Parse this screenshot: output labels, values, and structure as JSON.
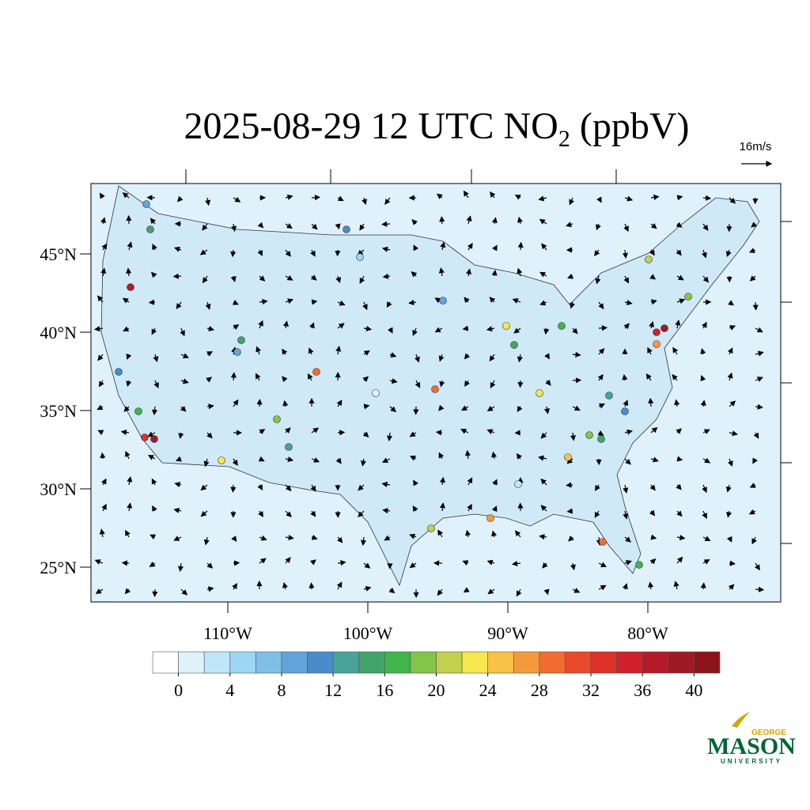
{
  "title": {
    "main": "2025-08-29 12 UTC NO",
    "subscript": "2",
    "unit": " (ppbV)"
  },
  "wind_reference": "16m/s",
  "lat_labels": [
    {
      "value": 45,
      "label": "45°N"
    },
    {
      "value": 40,
      "label": "40°N"
    },
    {
      "value": 35,
      "label": "35°N"
    },
    {
      "value": 30,
      "label": "30°N"
    },
    {
      "value": 25,
      "label": "25°N"
    }
  ],
  "lon_labels": [
    {
      "value": -110,
      "label": "110°W"
    },
    {
      "value": -100,
      "label": "100°W"
    },
    {
      "value": -90,
      "label": "90°W"
    },
    {
      "value": -80,
      "label": "80°W"
    }
  ],
  "colorbar": {
    "ticks": [
      0,
      4,
      8,
      12,
      16,
      20,
      24,
      28,
      32,
      36,
      40
    ],
    "colors": [
      "#ffffff",
      "#dff2fb",
      "#bfe6f7",
      "#9dd6f2",
      "#7fbfe6",
      "#62a4d9",
      "#4a8cca",
      "#4aa39a",
      "#43a36b",
      "#3fb54a",
      "#85c44a",
      "#c2d14c",
      "#f6e84e",
      "#f8c248",
      "#f59a3c",
      "#f06d2f",
      "#e84a2b",
      "#de3127",
      "#d0202a",
      "#b5192a",
      "#9f1a24",
      "#8b1418"
    ]
  },
  "logo": {
    "top": "GEORGE",
    "name": "MASON",
    "bottom": "UNIVERSITY"
  }
}
